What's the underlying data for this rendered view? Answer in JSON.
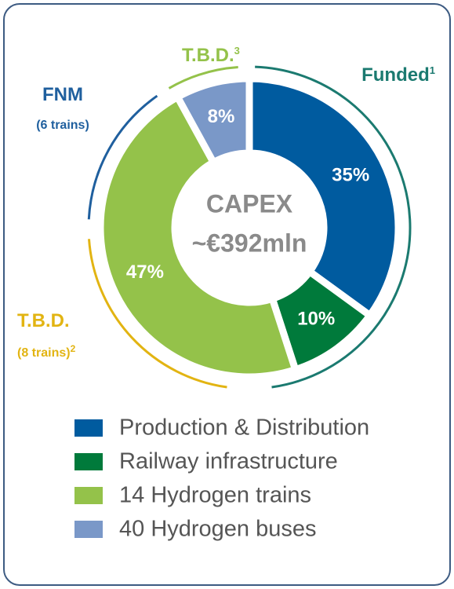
{
  "chart_data": {
    "type": "donut",
    "center_text": [
      "CAPEX",
      "~€392mln"
    ],
    "categories": [
      "Production & Distribution",
      "Railway infrastructure",
      "14 Hydrogen trains",
      "40 Hydrogen buses"
    ],
    "values": [
      35,
      10,
      47,
      8
    ],
    "value_labels": [
      "35%",
      "10%",
      "47%",
      "8%"
    ],
    "colors": [
      "#005b9f",
      "#007a3b",
      "#94c24a",
      "#7a98c8"
    ],
    "legend": "bottom",
    "annotations": [
      {
        "text": "Funded",
        "note": "1",
        "color": "#1b7a70"
      },
      {
        "text": "T.B.D.",
        "note": "3",
        "color": "#94c24a"
      },
      {
        "text": "FNM",
        "sub": "(6 trains)",
        "color": "#1f5f9e"
      },
      {
        "text": "T.B.D.",
        "sub": "(8 trains)",
        "note": "2",
        "color": "#e2b412"
      }
    ]
  }
}
